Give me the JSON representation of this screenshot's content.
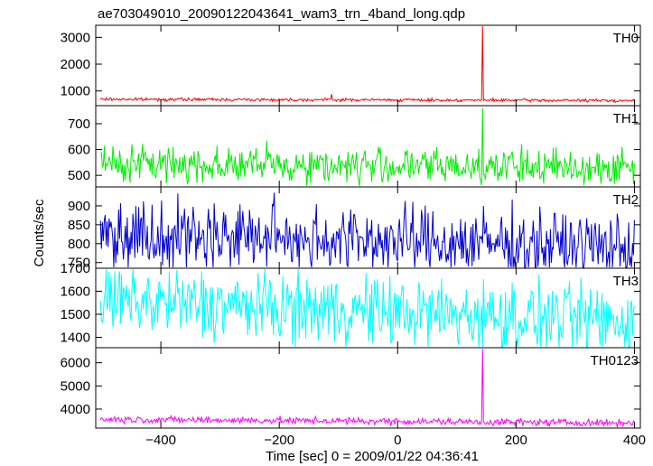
{
  "chart_data": {
    "type": "line",
    "title": "ae703049010_20090122043641_wam3_trn_4band_long.qdp",
    "xlabel": "Time [sec] 0 = 2009/01/22 04:36:41",
    "ylabel": "Counts/sec",
    "xlim": [
      -510,
      410
    ],
    "x_ticks": [
      -400,
      -200,
      0,
      200,
      400
    ],
    "x_tick_labels": [
      "−400",
      "−200",
      "0",
      "200",
      "400"
    ],
    "grid": false,
    "panels": [
      {
        "name": "TH0",
        "color": "#ff0000",
        "ylim": [
          450,
          3450
        ],
        "y_ticks": [
          1000,
          2000,
          3000
        ],
        "y_tick_labels": [
          "1000",
          "2000",
          "3000"
        ],
        "baseline_start": 690,
        "baseline_end": 640,
        "noise": 55,
        "spikes": [
          {
            "x": 143,
            "y": 3420
          },
          {
            "x": -112,
            "y": 880
          }
        ]
      },
      {
        "name": "TH1",
        "color": "#00ee00",
        "ylim": [
          455,
          770
        ],
        "y_ticks": [
          500,
          600,
          700
        ],
        "y_tick_labels": [
          "500",
          "600",
          "700"
        ],
        "baseline_start": 545,
        "baseline_end": 530,
        "noise": 70,
        "spikes": [
          {
            "x": 143,
            "y": 760
          }
        ]
      },
      {
        "name": "TH2",
        "color": "#0000cc",
        "ylim": [
          735,
          950
        ],
        "y_ticks": [
          750,
          800,
          850,
          900
        ],
        "y_tick_labels": [
          "750",
          "800",
          "850",
          "900"
        ],
        "baseline_start": 830,
        "baseline_end": 790,
        "noise": 90,
        "spikes": []
      },
      {
        "name": "TH3",
        "color": "#00ffff",
        "ylim": [
          1355,
          1700
        ],
        "y_ticks": [
          1400,
          1500,
          1600,
          1700
        ],
        "y_tick_labels": [
          "1400",
          "1500",
          "1600",
          "1700"
        ],
        "baseline_start": 1560,
        "baseline_end": 1470,
        "noise": 150,
        "spikes": []
      },
      {
        "name": "TH0123",
        "color": "#ff00ff",
        "ylim": [
          3180,
          6650
        ],
        "y_ticks": [
          4000,
          5000,
          6000
        ],
        "y_tick_labels": [
          "4000",
          "5000",
          "6000"
        ],
        "baseline_start": 3560,
        "baseline_end": 3400,
        "noise": 150,
        "spikes": [
          {
            "x": 143,
            "y": 6600
          }
        ]
      }
    ]
  }
}
